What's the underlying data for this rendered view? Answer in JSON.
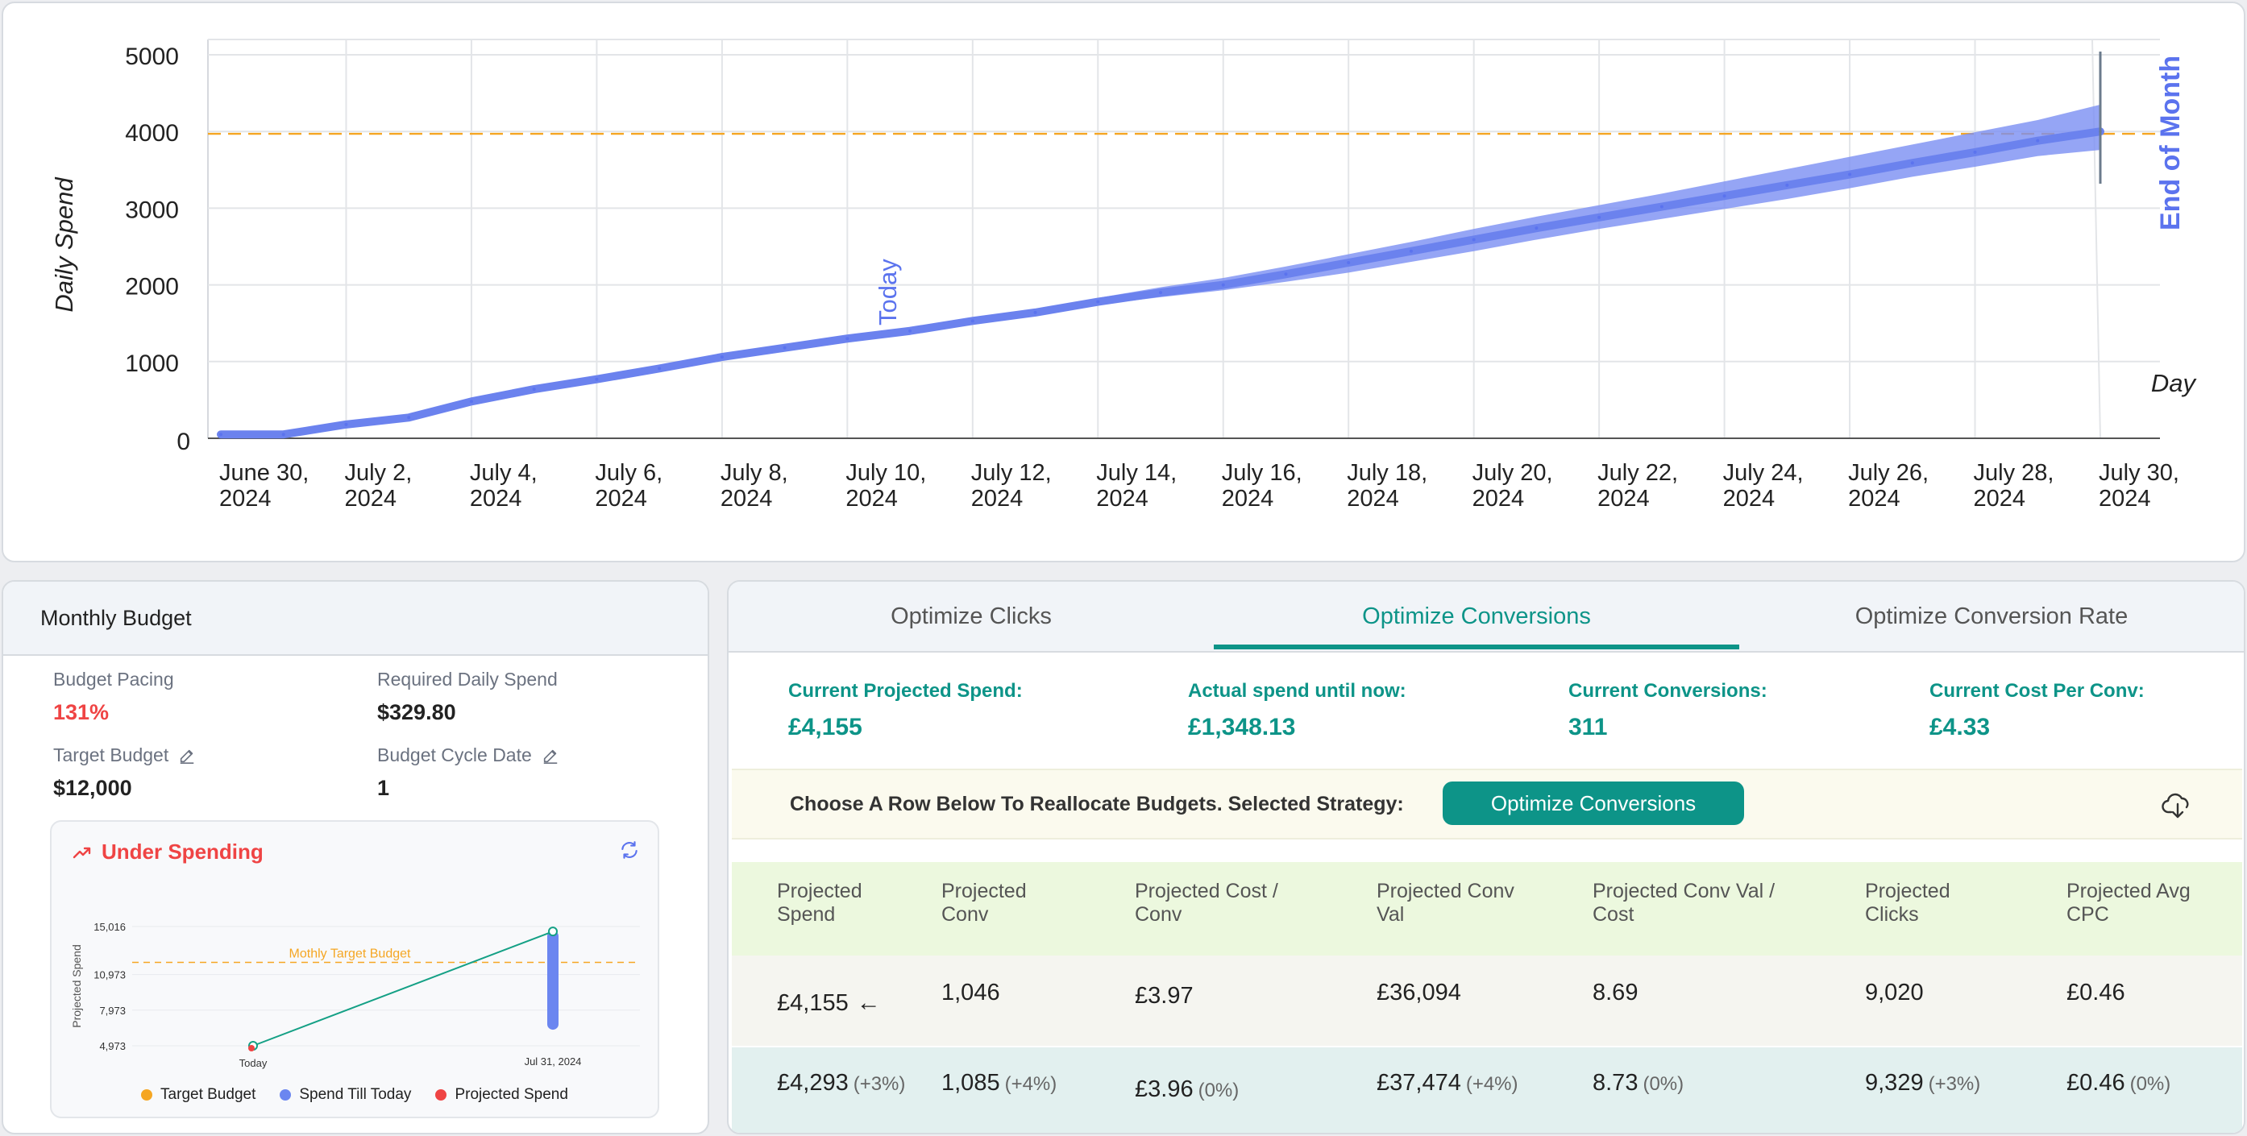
{
  "top_chart": {
    "ylabel": "Daily Spend",
    "xlabel": "Day",
    "yticks": [
      "0",
      "1000",
      "2000",
      "3000",
      "4000",
      "5000"
    ],
    "xticks": [
      "June 30,|2024",
      "July 2,|2024",
      "July 4,|2024",
      "July 6,|2024",
      "July 8,|2024",
      "July 10,|2024",
      "July 12,|2024",
      "July 14,|2024",
      "July 16,|2024",
      "July 18,|2024",
      "July 20,|2024",
      "July 22,|2024",
      "July 24,|2024",
      "July 26,|2024",
      "July 28,|2024",
      "July 30,|2024"
    ],
    "today_label": "Today",
    "eom_label": "End of Month"
  },
  "chart_data": [
    {
      "type": "area",
      "ylabel": "Daily Spend",
      "xlabel": "Day",
      "ylim": [
        0,
        5200
      ],
      "grid": true,
      "reference_line": {
        "y": 3970,
        "color": "#f5a623",
        "style": "dashed"
      },
      "series": [
        {
          "values": [
            {
              "x": "2024-06-30",
              "y": 50
            },
            {
              "x": "2024-07-01",
              "y": 50
            },
            {
              "x": "2024-07-02",
              "y": 180
            },
            {
              "x": "2024-07-03",
              "y": 270
            },
            {
              "x": "2024-07-04",
              "y": 480
            },
            {
              "x": "2024-07-05",
              "y": 640
            },
            {
              "x": "2024-07-06",
              "y": 770
            },
            {
              "x": "2024-07-07",
              "y": 910
            },
            {
              "x": "2024-07-08",
              "y": 1060
            },
            {
              "x": "2024-07-09",
              "y": 1180
            },
            {
              "x": "2024-07-10",
              "y": 1300
            },
            {
              "x": "2024-07-11",
              "y": 1400
            },
            {
              "x": "2024-07-12",
              "y": 1530
            },
            {
              "x": "2024-07-13",
              "y": 1640
            },
            {
              "x": "2024-07-14",
              "y": 1780
            },
            {
              "x": "2024-07-15",
              "y": 1900
            },
            {
              "x": "2024-07-16",
              "y": 2000
            },
            {
              "x": "2024-07-17",
              "y": 2140
            },
            {
              "x": "2024-07-18",
              "y": 2290
            },
            {
              "x": "2024-07-19",
              "y": 2440
            },
            {
              "x": "2024-07-20",
              "y": 2590
            },
            {
              "x": "2024-07-21",
              "y": 2740
            },
            {
              "x": "2024-07-22",
              "y": 2880
            },
            {
              "x": "2024-07-23",
              "y": 3020
            },
            {
              "x": "2024-07-24",
              "y": 3160
            },
            {
              "x": "2024-07-25",
              "y": 3300
            },
            {
              "x": "2024-07-26",
              "y": 3440
            },
            {
              "x": "2024-07-27",
              "y": 3590
            },
            {
              "x": "2024-07-28",
              "y": 3730
            },
            {
              "x": "2024-07-29",
              "y": 3880
            },
            {
              "x": "2024-07-30",
              "y": 4000
            }
          ],
          "band": {
            "from": "2024-07-14",
            "upper": [
              1830,
              1970,
              2090,
              2240,
              2400,
              2560,
              2730,
              2890,
              3040,
              3190,
              3350,
              3510,
              3670,
              3830,
              3990,
              4150,
              4350
            ],
            "lower": [
              1740,
              1840,
              1930,
              2040,
              2160,
              2300,
              2440,
              2590,
              2730,
              2860,
              2990,
              3120,
              3260,
              3410,
              3540,
              3680,
              3760
            ]
          }
        }
      ]
    },
    {
      "type": "line",
      "ylabel": "Projected Spend",
      "yticks": [
        "4,973",
        "7,973",
        "10,973",
        "15,016"
      ],
      "x": [
        "Today",
        "Jul 31, 2024"
      ],
      "reference_line": {
        "label": "Mothly Target Budget",
        "y": 12000
      },
      "series": [
        {
          "name": "Projected Spend",
          "values": [
            4973,
            14600
          ]
        }
      ],
      "spend_range": [
        6800,
        14600
      ],
      "legend": [
        "Target Budget",
        "Spend Till Today",
        "Projected Spend"
      ]
    }
  ],
  "colors": {
    "accent": "#0d9488",
    "warning": "#ef4444",
    "series": "#5b73ee",
    "target": "#f5a623"
  },
  "budget": {
    "title": "Monthly Budget",
    "pacing_label": "Budget Pacing",
    "pacing_value": "131%",
    "required_label": "Required Daily Spend",
    "required_value": "$329.80",
    "target_label": "Target Budget",
    "target_value": "$12,000",
    "cycle_label": "Budget Cycle Date",
    "cycle_value": "1",
    "status": "Under Spending",
    "mini_ylabel": "Projected Spend",
    "mini_yticks": [
      "15,016",
      "10,973",
      "7,973",
      "4,973"
    ],
    "mini_target_label": "Mothly Target Budget",
    "mini_x_today": "Today",
    "mini_x_end": "Jul 31, 2024",
    "legend": [
      {
        "label": "Target Budget",
        "color": "#f5a623"
      },
      {
        "label": "Spend Till Today",
        "color": "#6b86f0"
      },
      {
        "label": "Projected Spend",
        "color": "#ef4444"
      }
    ]
  },
  "optimize": {
    "tabs": [
      "Optimize Clicks",
      "Optimize Conversions",
      "Optimize Conversion Rate"
    ],
    "metrics": [
      {
        "label": "Current Projected Spend:",
        "value": "£4,155"
      },
      {
        "label": "Actual spend until now:",
        "value": "£1,348.13"
      },
      {
        "label": "Current Conversions:",
        "value": "311"
      },
      {
        "label": "Current Cost Per Conv:",
        "value": "£4.33"
      }
    ],
    "strategy_text": "Choose A Row Below To Reallocate Budgets. Selected Strategy:",
    "strategy_button": "Optimize Conversions",
    "headers": [
      [
        "Projected",
        "Spend"
      ],
      [
        "Projected",
        "Conv"
      ],
      [
        "Projected Cost /",
        "Conv"
      ],
      [
        "Projected Conv",
        "Val"
      ],
      [
        "Projected Conv Val /",
        "Cost"
      ],
      [
        "Projected",
        "Clicks"
      ],
      [
        "Projected Avg",
        "CPC"
      ]
    ],
    "rows": [
      [
        {
          "v": "£4,155",
          "c": "",
          "arrow": "←"
        },
        {
          "v": "1,046",
          "c": ""
        },
        {
          "v": "£3.97",
          "c": ""
        },
        {
          "v": "£36,094",
          "c": ""
        },
        {
          "v": "8.69",
          "c": ""
        },
        {
          "v": "9,020",
          "c": ""
        },
        {
          "v": "£0.46",
          "c": ""
        }
      ],
      [
        {
          "v": "£4,293",
          "c": "(+3%)"
        },
        {
          "v": "1,085",
          "c": "(+4%)"
        },
        {
          "v": "£3.96",
          "c": "(0%)"
        },
        {
          "v": "£37,474",
          "c": "(+4%)"
        },
        {
          "v": "8.73",
          "c": "(0%)"
        },
        {
          "v": "9,329",
          "c": "(+3%)"
        },
        {
          "v": "£0.46",
          "c": "(0%)"
        }
      ]
    ]
  }
}
